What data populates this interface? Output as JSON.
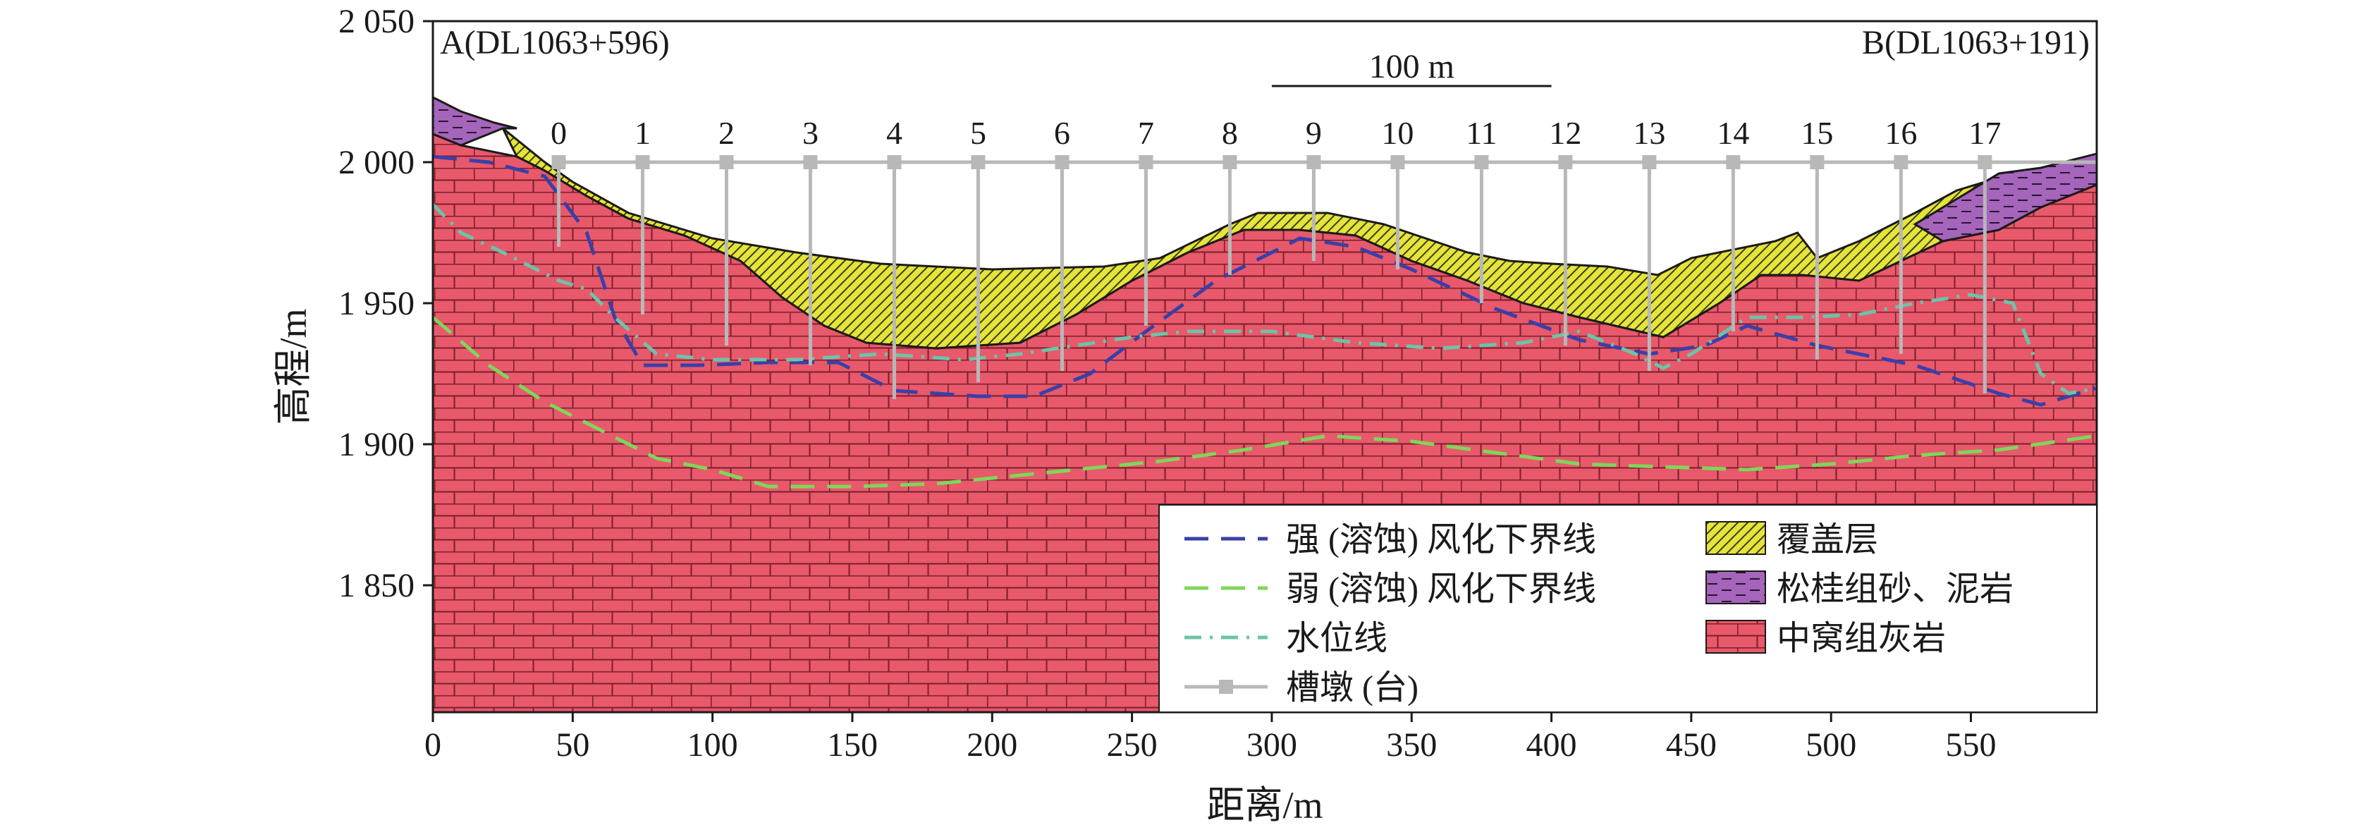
{
  "chart_data": {
    "type": "area",
    "title": "",
    "xlabel": "距离/m",
    "ylabel": "高程/m",
    "xlim": [
      0,
      595
    ],
    "ylim": [
      1805,
      2050
    ],
    "x_ticks": [
      0,
      50,
      100,
      150,
      200,
      250,
      300,
      350,
      400,
      450,
      500,
      550
    ],
    "x_tick_labels": [
      "0",
      "50",
      "100",
      "150",
      "200",
      "250",
      "300",
      "350",
      "400",
      "450",
      "500",
      "550"
    ],
    "y_ticks": [
      1850,
      1900,
      1950,
      2000,
      2050
    ],
    "y_tick_labels": [
      "1 850",
      "1 900",
      "1 950",
      "2 000",
      "2 050"
    ],
    "grid": false,
    "legend_position": "bottom-right",
    "annotations": {
      "left_end": "A(DL1063+596)",
      "right_end": "B(DL1063+191)",
      "scale_bar": "100 m",
      "scale_bar_range": [
        300,
        400
      ],
      "scale_bar_y": 2030
    },
    "layers": [
      {
        "name": "中窝组灰岩",
        "fill": "#e8596b",
        "top": [
          [
            0,
            2010
          ],
          [
            10,
            2006
          ],
          [
            30,
            2002
          ],
          [
            40,
            1997
          ],
          [
            55,
            1988
          ],
          [
            70,
            1980
          ],
          [
            90,
            1974
          ],
          [
            110,
            1965
          ],
          [
            125,
            1952
          ],
          [
            140,
            1942
          ],
          [
            155,
            1936
          ],
          [
            180,
            1934
          ],
          [
            210,
            1936
          ],
          [
            230,
            1946
          ],
          [
            250,
            1958
          ],
          [
            270,
            1968
          ],
          [
            290,
            1976
          ],
          [
            310,
            1976
          ],
          [
            330,
            1974
          ],
          [
            350,
            1965
          ],
          [
            370,
            1958
          ],
          [
            390,
            1950
          ],
          [
            410,
            1945
          ],
          [
            440,
            1938
          ],
          [
            460,
            1950
          ],
          [
            475,
            1960
          ],
          [
            490,
            1960
          ],
          [
            510,
            1958
          ],
          [
            540,
            1972
          ],
          [
            560,
            1976
          ],
          [
            575,
            1984
          ],
          [
            595,
            1992
          ]
        ]
      },
      {
        "name": "覆盖层",
        "fill": "#e4e43a",
        "top": [
          [
            25,
            2012
          ],
          [
            40,
            2000
          ],
          [
            50,
            1993
          ],
          [
            70,
            1982
          ],
          [
            100,
            1973
          ],
          [
            130,
            1968
          ],
          [
            160,
            1964
          ],
          [
            200,
            1962
          ],
          [
            240,
            1963
          ],
          [
            260,
            1966
          ],
          [
            285,
            1978
          ],
          [
            295,
            1982
          ],
          [
            320,
            1982
          ],
          [
            340,
            1978
          ],
          [
            370,
            1968
          ],
          [
            385,
            1965
          ],
          [
            400,
            1964
          ],
          [
            420,
            1963
          ],
          [
            438,
            1960
          ],
          [
            450,
            1966
          ],
          [
            480,
            1972
          ],
          [
            488,
            1975
          ],
          [
            495,
            1966
          ],
          [
            510,
            1972
          ],
          [
            530,
            1982
          ],
          [
            545,
            1990
          ],
          [
            565,
            1996
          ]
        ]
      },
      {
        "name": "松桂组砂、泥岩",
        "fill": "#a465ba",
        "top": [
          [
            0,
            2023
          ],
          [
            10,
            2018
          ],
          [
            22,
            2014
          ],
          [
            30,
            2012
          ]
        ],
        "top_right": [
          [
            530,
            1978
          ],
          [
            560,
            1996
          ],
          [
            575,
            1998
          ],
          [
            595,
            2003
          ]
        ]
      }
    ],
    "series": [
      {
        "name": "强 (溶蚀) 风化下界线",
        "color": "#3a3fa8",
        "dash": "long-dash",
        "x": [
          0,
          20,
          40,
          55,
          65,
          75,
          95,
          120,
          145,
          165,
          195,
          215,
          235,
          255,
          280,
          310,
          330,
          350,
          380,
          410,
          435,
          455,
          470,
          495,
          530,
          560,
          575,
          595
        ],
        "y": [
          2002,
          2000,
          1995,
          1975,
          1945,
          1928,
          1928,
          1929,
          1929,
          1919,
          1917,
          1917,
          1925,
          1940,
          1958,
          1973,
          1970,
          1962,
          1948,
          1937,
          1932,
          1935,
          1942,
          1935,
          1928,
          1918,
          1914,
          1920
        ]
      },
      {
        "name": "弱 (溶蚀) 风化下界线",
        "color": "#7fd65a",
        "dash": "long-dash",
        "x": [
          0,
          20,
          40,
          60,
          80,
          100,
          120,
          150,
          180,
          200,
          230,
          260,
          290,
          320,
          350,
          380,
          410,
          440,
          470,
          500,
          530,
          560,
          595
        ],
        "y": [
          1945,
          1928,
          1915,
          1905,
          1895,
          1891,
          1885,
          1885,
          1886,
          1888,
          1891,
          1894,
          1898,
          1903,
          1901,
          1897,
          1893,
          1892,
          1891,
          1893,
          1896,
          1898,
          1903
        ]
      },
      {
        "name": "水位线",
        "color": "#6cc4a8",
        "dash": "dash-dot",
        "x": [
          0,
          10,
          25,
          35,
          45,
          55,
          65,
          80,
          100,
          130,
          160,
          190,
          210,
          230,
          250,
          270,
          300,
          330,
          360,
          390,
          410,
          430,
          440,
          450,
          470,
          490,
          510,
          530,
          550,
          565,
          575,
          585,
          595
        ],
        "y": [
          1985,
          1975,
          1968,
          1963,
          1958,
          1955,
          1945,
          1932,
          1930,
          1930,
          1932,
          1930,
          1932,
          1935,
          1938,
          1940,
          1940,
          1936,
          1934,
          1936,
          1940,
          1932,
          1927,
          1932,
          1945,
          1945,
          1946,
          1950,
          1953,
          1950,
          1925,
          1918,
          1920
        ]
      }
    ],
    "piers": {
      "name": "槽墩 (台)",
      "color": "#b8b8b8",
      "top_elevation": 2000,
      "labels": [
        "0",
        "1",
        "2",
        "3",
        "4",
        "5",
        "6",
        "7",
        "8",
        "9",
        "10",
        "11",
        "12",
        "13",
        "14",
        "15",
        "16",
        "17"
      ],
      "x": [
        45,
        75,
        105,
        135,
        165,
        195,
        225,
        255,
        285,
        315,
        345,
        375,
        405,
        435,
        465,
        495,
        525,
        555
      ],
      "base": [
        1970,
        1946,
        1935,
        1928,
        1916,
        1922,
        1926,
        1942,
        1960,
        1965,
        1962,
        1950,
        1935,
        1926,
        1940,
        1930,
        1932,
        1918
      ]
    },
    "legend": [
      {
        "label": "强 (溶蚀) 风化下界线",
        "kind": "line",
        "ref": "strong"
      },
      {
        "label": "弱 (溶蚀) 风化下界线",
        "kind": "line",
        "ref": "weak"
      },
      {
        "label": "水位线",
        "kind": "line",
        "ref": "water"
      },
      {
        "label": "槽墩 (台)",
        "kind": "pier"
      },
      {
        "label": "覆盖层",
        "kind": "patch",
        "ref": "cover"
      },
      {
        "label": "松桂组砂、泥岩",
        "kind": "patch",
        "ref": "sand"
      },
      {
        "label": "中窝组灰岩",
        "kind": "patch",
        "ref": "limestone"
      }
    ]
  }
}
